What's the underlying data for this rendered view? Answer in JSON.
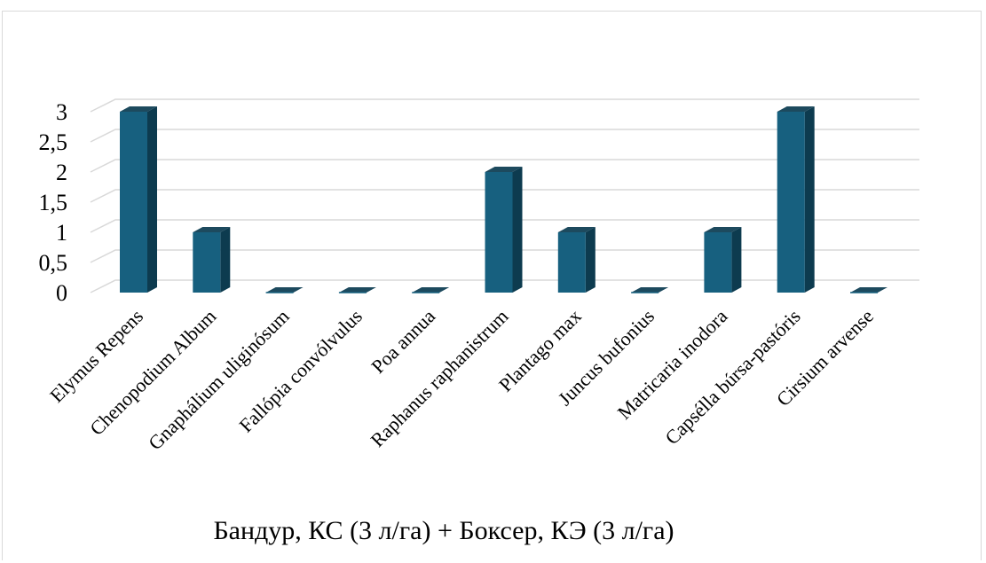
{
  "chart_data": {
    "type": "bar",
    "title": "Бандур, КС (3 л/га) + Боксер, КЭ (3 л/га)",
    "categories": [
      "Elymus Repens",
      "Chenopodium Album",
      "Gnaphálium uliginósum",
      "Fallópia convólvulus",
      "Poa annua",
      "Raphanus raphanistrum",
      "Plantago max",
      "Juncus bufonius",
      "Matricaria inodora",
      "Capsélla búrsa-pastóris",
      "Cirsium arvense"
    ],
    "values": [
      3,
      1,
      0,
      0,
      0,
      2,
      1,
      0,
      1,
      3,
      0
    ],
    "ylim": [
      0,
      3
    ],
    "yticks": [
      0,
      0.5,
      1,
      1.5,
      2,
      2.5,
      3
    ],
    "ytick_labels": [
      "0",
      "0,5",
      "1",
      "1,5",
      "2",
      "2,5",
      "3"
    ],
    "xlabel": "",
    "ylabel": "",
    "grid": true,
    "legend": "none",
    "style": "3d-column",
    "colors": {
      "bar_front": "#17607f",
      "bar_side": "#0d3b4f",
      "bar_top": "#1d4a5e",
      "grid": "#d9d9d9"
    }
  }
}
